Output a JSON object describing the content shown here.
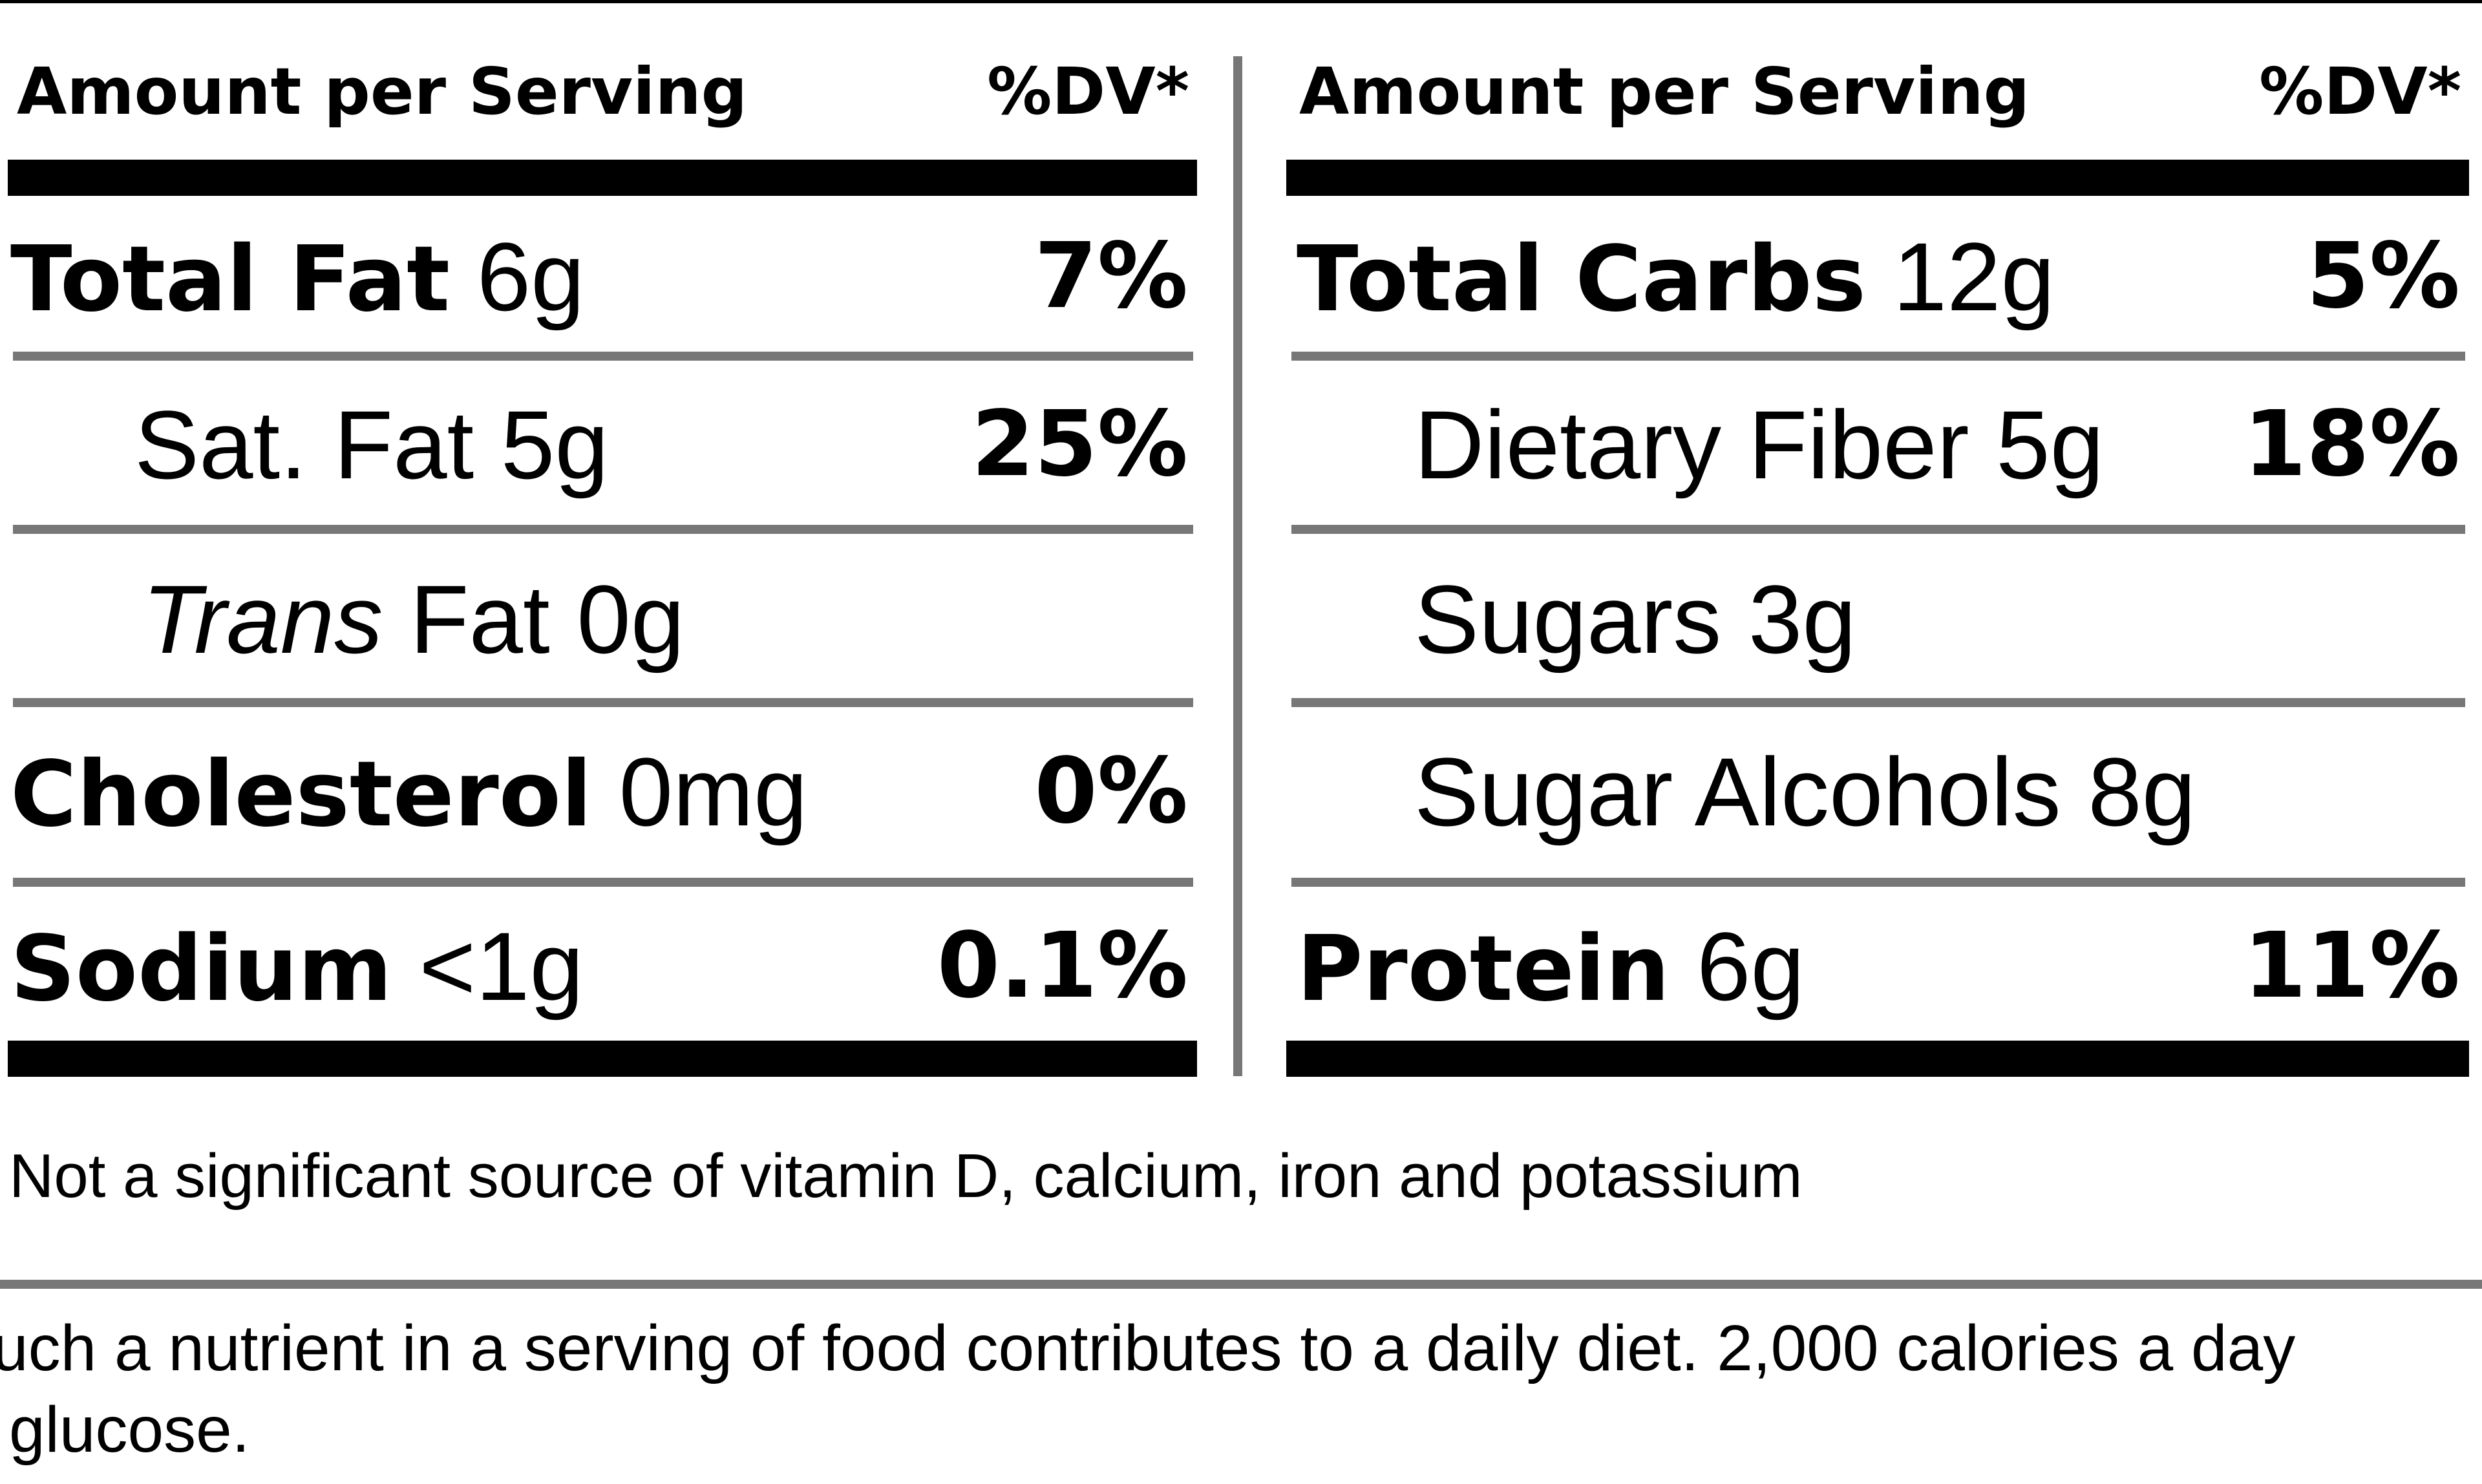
{
  "left_panel": {
    "header_label": "Amount per Serving",
    "header_dv": "%DV*",
    "rows": [
      {
        "name": "Total Fat",
        "amount": "6g",
        "dv": "7%"
      },
      {
        "name": "Sat. Fat",
        "amount": "5g",
        "dv": "25%"
      },
      {
        "name": "Trans",
        "name_suffix": "Fat",
        "amount": "0g",
        "dv": ""
      },
      {
        "name": "Cholesterol",
        "amount": "0mg",
        "dv": "0%"
      },
      {
        "name": "Sodium",
        "amount": "<1g",
        "dv": "0.1%"
      }
    ]
  },
  "right_panel": {
    "header_label": "Amount per Serving",
    "header_dv": "%DV*",
    "rows": [
      {
        "name": "Total Carbs",
        "amount": "12g",
        "dv": "5%"
      },
      {
        "name": "Dietary Fiber",
        "amount": "5g",
        "dv": "18%"
      },
      {
        "name": "Sugars",
        "amount": "3g",
        "dv": ""
      },
      {
        "name": "Sugar Alcohols",
        "amount": "8g",
        "dv": ""
      },
      {
        "name": "Protein",
        "amount": "6g",
        "dv": "11%"
      }
    ]
  },
  "note": "Not a significant source of vitamin D, calcium, iron and potassium",
  "footnote": {
    "line1": "uch a nutrient in a serving of food contributes to a daily diet. 2,000 calories a day",
    "line2": "glucose."
  }
}
